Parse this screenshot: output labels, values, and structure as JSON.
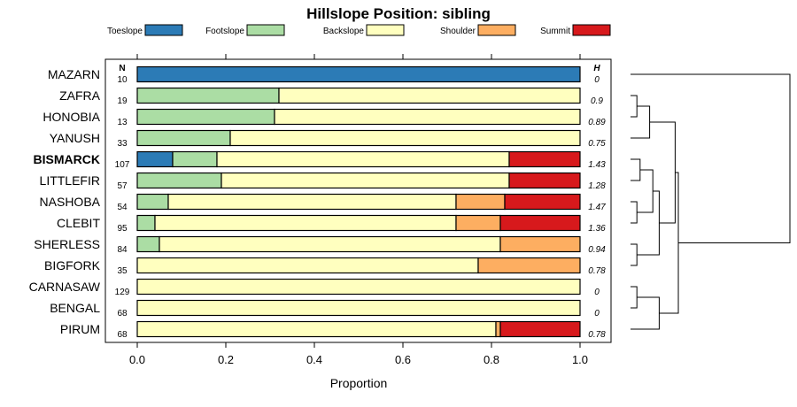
{
  "chart_data": {
    "type": "bar",
    "orientation": "horizontal",
    "stacked": true,
    "title": "Hillslope Position: sibling",
    "xlabel": "Proportion",
    "xlim": [
      0,
      1
    ],
    "xticks": [
      "0.0",
      "0.2",
      "0.4",
      "0.6",
      "0.8",
      "1.0"
    ],
    "column_headers": {
      "n": "N",
      "h": "H"
    },
    "legend_position": "top",
    "highlighted_category": "BISMARCK",
    "series": [
      {
        "name": "Toeslope",
        "color": "#2c7bb6"
      },
      {
        "name": "Footslope",
        "color": "#abdda4"
      },
      {
        "name": "Backslope",
        "color": "#ffffbf"
      },
      {
        "name": "Shoulder",
        "color": "#fdae61"
      },
      {
        "name": "Summit",
        "color": "#d7191c"
      }
    ],
    "categories": [
      "MAZARN",
      "ZAFRA",
      "HONOBIA",
      "YANUSH",
      "BISMARCK",
      "LITTLEFIR",
      "NASHOBA",
      "CLEBIT",
      "SHERLESS",
      "BIGFORK",
      "CARNASAW",
      "BENGAL",
      "PIRUM"
    ],
    "n": [
      "10",
      "19",
      "13",
      "33",
      "107",
      "57",
      "54",
      "95",
      "84",
      "35",
      "129",
      "68",
      "68"
    ],
    "h": [
      "0",
      "0.9",
      "0.89",
      "0.75",
      "1.43",
      "1.28",
      "1.47",
      "1.36",
      "0.94",
      "0.78",
      "0",
      "0",
      "0.78"
    ],
    "values": [
      [
        1.0,
        0.0,
        0.0,
        0.0,
        0.0
      ],
      [
        0.0,
        0.32,
        0.68,
        0.0,
        0.0
      ],
      [
        0.0,
        0.31,
        0.69,
        0.0,
        0.0
      ],
      [
        0.0,
        0.21,
        0.79,
        0.0,
        0.0
      ],
      [
        0.08,
        0.1,
        0.66,
        0.0,
        0.16
      ],
      [
        0.0,
        0.19,
        0.65,
        0.0,
        0.16
      ],
      [
        0.0,
        0.07,
        0.65,
        0.11,
        0.17
      ],
      [
        0.0,
        0.04,
        0.68,
        0.1,
        0.18
      ],
      [
        0.0,
        0.05,
        0.77,
        0.18,
        0.0
      ],
      [
        0.0,
        0.0,
        0.77,
        0.23,
        0.0
      ],
      [
        0.0,
        0.0,
        1.0,
        0.0,
        0.0
      ],
      [
        0.0,
        0.0,
        1.0,
        0.0,
        0.0
      ],
      [
        0.0,
        0.0,
        0.81,
        0.01,
        0.18
      ]
    ],
    "dendrogram": {
      "leaves": [
        "MAZARN",
        "ZAFRA",
        "HONOBIA",
        "YANUSH",
        "BISMARCK",
        "LITTLEFIR",
        "NASHOBA",
        "CLEBIT",
        "SHERLESS",
        "BIGFORK",
        "CARNASAW",
        "BENGAL",
        "PIRUM"
      ],
      "merges": [
        {
          "a": "ZAFRA",
          "b": "HONOBIA",
          "height": 0.02
        },
        {
          "a": "m0",
          "b": "YANUSH",
          "height": 0.06
        },
        {
          "a": "BISMARCK",
          "b": "LITTLEFIR",
          "height": 0.03
        },
        {
          "a": "NASHOBA",
          "b": "CLEBIT",
          "height": 0.02
        },
        {
          "a": "m2",
          "b": "m3",
          "height": 0.07
        },
        {
          "a": "SHERLESS",
          "b": "BIGFORK",
          "height": 0.02
        },
        {
          "a": "m4",
          "b": "m5",
          "height": 0.09
        },
        {
          "a": "m1",
          "b": "m6",
          "height": 0.14
        },
        {
          "a": "CARNASAW",
          "b": "BENGAL",
          "height": 0.02
        },
        {
          "a": "m8",
          "b": "PIRUM",
          "height": 0.09
        },
        {
          "a": "m7",
          "b": "m9",
          "height": 0.15
        },
        {
          "a": "MAZARN",
          "b": "m10",
          "height": 0.5
        }
      ]
    }
  }
}
